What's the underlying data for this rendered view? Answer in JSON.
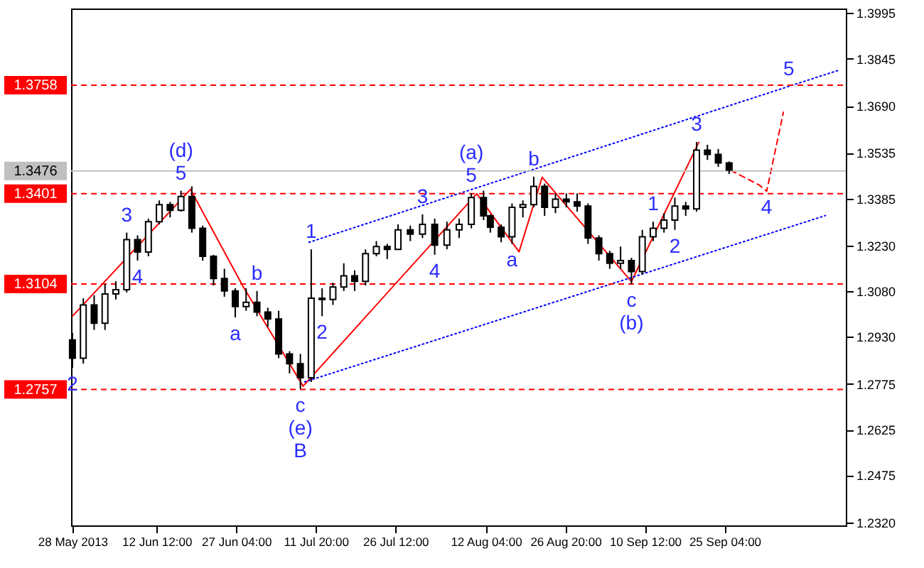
{
  "chart_data": {
    "type": "candlestick",
    "xlim": [
      "2013-05-27T18:00",
      "2013-10-17T12:00"
    ],
    "ylim": [
      1.231,
      1.401
    ],
    "xticks": [
      {
        "value": "2013-05-28",
        "label": "28 May 2013"
      },
      {
        "value": "2013-06-12T12:00",
        "label": "12 Jun 12:00"
      },
      {
        "value": "2013-06-27T04:00",
        "label": "27 Jun 04:00"
      },
      {
        "value": "2013-07-11T20:00",
        "label": "11 Jul 20:00"
      },
      {
        "value": "2013-07-26T12:00",
        "label": "26 Jul 12:00"
      },
      {
        "value": "2013-08-12T04:00",
        "label": "12 Aug 04:00"
      },
      {
        "value": "2013-08-26T20:00",
        "label": "26 Aug 20:00"
      },
      {
        "value": "2013-09-10T12:00",
        "label": "10 Sep 12:00"
      },
      {
        "value": "2013-09-25T04:00",
        "label": "25 Sep 04:00"
      }
    ],
    "yticks": [
      {
        "value": 1.232,
        "label": "1.2320"
      },
      {
        "value": 1.2475,
        "label": "1.2475"
      },
      {
        "value": 1.2625,
        "label": "1.2625"
      },
      {
        "value": 1.2775,
        "label": "1.2775"
      },
      {
        "value": 1.293,
        "label": "1.2930"
      },
      {
        "value": 1.308,
        "label": "1.3080"
      },
      {
        "value": 1.323,
        "label": "1.3230"
      },
      {
        "value": 1.3385,
        "label": "1.3385"
      },
      {
        "value": 1.3535,
        "label": "1.3535"
      },
      {
        "value": 1.369,
        "label": "1.3690"
      },
      {
        "value": 1.3845,
        "label": "1.3845"
      },
      {
        "value": 1.3995,
        "label": "1.3995"
      }
    ],
    "series": [
      {
        "type": "line",
        "color": "#ff0000",
        "line_style": "solid",
        "x": [
          "2013-05-28",
          "2013-06-18T18:00",
          "2013-06-28T12:00",
          "2013-07-09T12:00",
          "2013-08-10T12:00",
          "2013-08-14T05:00",
          "2013-08-18T07:00",
          "2013-08-22T13:00",
          "2013-09-08",
          "2013-09-20T10:00"
        ],
        "values": [
          1.2998,
          1.3415,
          1.3094,
          1.2768,
          1.3401,
          1.3309,
          1.321,
          1.3455,
          1.3112,
          1.357
        ]
      },
      {
        "type": "line",
        "color": "#ff0000",
        "line_style": "dashed",
        "x": [
          "2013-09-26T07:00",
          "2013-10-01T14:00",
          "2013-10-02T22:00",
          "2013-10-06"
        ],
        "values": [
          1.3478,
          1.3429,
          1.3409,
          1.3669
        ]
      },
      {
        "type": "line",
        "color": "#0000ff",
        "line_style": "dotted",
        "x": [
          "2013-07-10T14:00",
          "2013-10-07",
          "2013-10-16"
        ],
        "values": [
          1.3241,
          1.3754,
          1.3806
        ]
      },
      {
        "type": "line",
        "color": "#0000ff",
        "line_style": "dotted",
        "x": [
          "2013-07-09T19:00",
          "2013-10-13T18:00"
        ],
        "values": [
          1.2782,
          1.3329
        ]
      },
      {
        "color": "#000000",
        "x": [
          "2013-05-28",
          "2013-05-30",
          "2013-06-01",
          "2013-06-03",
          "2013-06-05",
          "2013-06-07",
          "2013-06-09",
          "2013-06-11",
          "2013-06-13",
          "2013-06-15",
          "2013-06-17",
          "2013-06-19",
          "2013-06-21",
          "2013-06-23",
          "2013-06-25",
          "2013-06-27",
          "2013-06-29",
          "2013-07-01",
          "2013-07-03",
          "2013-07-05",
          "2013-07-07",
          "2013-07-09",
          "2013-07-11",
          "2013-07-13",
          "2013-07-15",
          "2013-07-17",
          "2013-07-19",
          "2013-07-21",
          "2013-07-23",
          "2013-07-25",
          "2013-07-27",
          "2013-07-29T06:00",
          "2013-07-31T12:00",
          "2013-08-02T18:00",
          "2013-08-05",
          "2013-08-07T06:00",
          "2013-08-09T12:00",
          "2013-08-11T18:00",
          "2013-08-13",
          "2013-08-15",
          "2013-08-17",
          "2013-08-19",
          "2013-08-21",
          "2013-08-23",
          "2013-08-25",
          "2013-08-27",
          "2013-08-29",
          "2013-08-31",
          "2013-09-02",
          "2013-09-04",
          "2013-09-06",
          "2013-09-08",
          "2013-09-10",
          "2013-09-12",
          "2013-09-14",
          "2013-09-16",
          "2013-09-18",
          "2013-09-20",
          "2013-09-22",
          "2013-09-24",
          "2013-09-26"
        ],
        "ohlc": [
          [
            1.292,
            1.2943,
            1.2828,
            1.286
          ],
          [
            1.286,
            1.3057,
            1.2842,
            1.3035
          ],
          [
            1.3035,
            1.3067,
            1.2953,
            1.2975
          ],
          [
            1.2975,
            1.3104,
            1.2953,
            1.3071
          ],
          [
            1.3071,
            1.3113,
            1.3053,
            1.3085
          ],
          [
            1.3085,
            1.3273,
            1.3076,
            1.325
          ],
          [
            1.325,
            1.3264,
            1.3181,
            1.3209
          ],
          [
            1.3209,
            1.3319,
            1.3195,
            1.3309
          ],
          [
            1.3309,
            1.3379,
            1.33,
            1.3365
          ],
          [
            1.3365,
            1.3374,
            1.3323,
            1.3346
          ],
          [
            1.3346,
            1.3411,
            1.3342,
            1.3392
          ],
          [
            1.3392,
            1.3425,
            1.3273,
            1.3287
          ],
          [
            1.3287,
            1.3296,
            1.3181,
            1.3195
          ],
          [
            1.3195,
            1.32,
            1.3099,
            1.3122
          ],
          [
            1.3122,
            1.3154,
            1.3062,
            1.3081
          ],
          [
            1.3081,
            1.309,
            1.2994,
            1.303
          ],
          [
            1.303,
            1.309,
            1.3016,
            1.3044
          ],
          [
            1.3044,
            1.3081,
            1.2998,
            1.3012
          ],
          [
            1.3012,
            1.3026,
            1.2962,
            1.2989
          ],
          [
            1.2989,
            1.3016,
            1.286,
            1.2874
          ],
          [
            1.2874,
            1.2883,
            1.281,
            1.2842
          ],
          [
            1.2842,
            1.2874,
            1.2759,
            1.2796
          ],
          [
            1.2796,
            1.3218,
            1.2782,
            1.3057
          ],
          [
            1.3057,
            1.309,
            1.2998,
            1.3053
          ],
          [
            1.3053,
            1.3108,
            1.3035,
            1.3094
          ],
          [
            1.3094,
            1.3172,
            1.3081,
            1.3131
          ],
          [
            1.3131,
            1.3149,
            1.3081,
            1.3113
          ],
          [
            1.3113,
            1.3218,
            1.3099,
            1.3204
          ],
          [
            1.3204,
            1.3245,
            1.3195,
            1.3227
          ],
          [
            1.3227,
            1.3236,
            1.3186,
            1.3218
          ],
          [
            1.3218,
            1.33,
            1.3218,
            1.3282
          ],
          [
            1.3282,
            1.3296,
            1.3245,
            1.3268
          ],
          [
            1.3268,
            1.3333,
            1.3255,
            1.33
          ],
          [
            1.33,
            1.3319,
            1.32,
            1.3232
          ],
          [
            1.3232,
            1.3309,
            1.3218,
            1.3282
          ],
          [
            1.3282,
            1.3319,
            1.3255,
            1.33
          ],
          [
            1.33,
            1.3402,
            1.3287,
            1.3388
          ],
          [
            1.3388,
            1.3411,
            1.3314,
            1.3328
          ],
          [
            1.3328,
            1.3333,
            1.3273,
            1.3291
          ],
          [
            1.3291,
            1.33,
            1.3241,
            1.3259
          ],
          [
            1.3259,
            1.3369,
            1.3236,
            1.3356
          ],
          [
            1.3356,
            1.3379,
            1.3323,
            1.3365
          ],
          [
            1.3365,
            1.3457,
            1.3356,
            1.3425
          ],
          [
            1.3425,
            1.3434,
            1.3328,
            1.3356
          ],
          [
            1.3356,
            1.3402,
            1.3337,
            1.3383
          ],
          [
            1.3383,
            1.3402,
            1.3356,
            1.3374
          ],
          [
            1.3374,
            1.3402,
            1.3342,
            1.336
          ],
          [
            1.336,
            1.3369,
            1.3236,
            1.3255
          ],
          [
            1.3255,
            1.3264,
            1.3181,
            1.3204
          ],
          [
            1.3204,
            1.3213,
            1.3154,
            1.3172
          ],
          [
            1.3172,
            1.3227,
            1.3154,
            1.3181
          ],
          [
            1.3181,
            1.319,
            1.3104,
            1.3145
          ],
          [
            1.3145,
            1.3282,
            1.3136,
            1.3259
          ],
          [
            1.3259,
            1.3309,
            1.3245,
            1.3287
          ],
          [
            1.3287,
            1.3337,
            1.3273,
            1.3314
          ],
          [
            1.3314,
            1.3388,
            1.3282,
            1.336
          ],
          [
            1.336,
            1.3374,
            1.3328,
            1.3351
          ],
          [
            1.3351,
            1.3571,
            1.3342,
            1.3544
          ],
          [
            1.3544,
            1.3562,
            1.3512,
            1.353
          ],
          [
            1.353,
            1.3548,
            1.3489,
            1.3502
          ],
          [
            1.3502,
            1.3507,
            1.3466,
            1.3479
          ]
        ]
      }
    ],
    "ref_lines": [
      {
        "axis": "y",
        "value": 1.3758,
        "label": "1.3758",
        "color": "#ff0000",
        "line_style": "dashed"
      },
      {
        "axis": "y",
        "value": 1.3476,
        "label": "1.3476",
        "color": "#c0c0c0",
        "line_style": "solid"
      },
      {
        "axis": "y",
        "value": 1.3401,
        "label": "1.3401",
        "color": "#ff0000",
        "line_style": "dashed"
      },
      {
        "axis": "y",
        "value": 1.3104,
        "label": "1.3104",
        "color": "#ff0000",
        "line_style": "dashed"
      },
      {
        "axis": "y",
        "value": 1.2757,
        "label": "1.2757",
        "color": "#ff0000",
        "line_style": "dashed"
      }
    ],
    "annotations": [
      {
        "text": "2",
        "x": "2013-05-28",
        "y": 1.2828
      },
      {
        "text": "3",
        "x": "2013-06-07",
        "y": 1.3273
      },
      {
        "text": "4",
        "x": "2013-06-09",
        "y": 1.3181
      },
      {
        "text": "5",
        "x": "2013-06-17",
        "y": 1.3411
      },
      {
        "text": "(d)",
        "x": "2013-06-17",
        "y": 1.3411
      },
      {
        "text": "a",
        "x": "2013-06-27",
        "y": 1.2994
      },
      {
        "text": "b",
        "x": "2013-07-01",
        "y": 1.3081
      },
      {
        "text": "c",
        "x": "2013-07-09",
        "y": 1.2759
      },
      {
        "text": "(e)",
        "x": "2013-07-09",
        "y": 1.2759
      },
      {
        "text": "B",
        "x": "2013-07-09",
        "y": 1.2759
      },
      {
        "text": "1",
        "x": "2013-07-11",
        "y": 1.3218
      },
      {
        "text": "2",
        "x": "2013-07-13",
        "y": 1.2998
      },
      {
        "text": "3",
        "x": "2013-07-31T12:00",
        "y": 1.3333
      },
      {
        "text": "4",
        "x": "2013-08-02T18:00",
        "y": 1.32
      },
      {
        "text": "5",
        "x": "2013-08-09T12:00",
        "y": 1.3402
      },
      {
        "text": "(a)",
        "x": "2013-08-09T12:00",
        "y": 1.3402
      },
      {
        "text": "a",
        "x": "2013-08-17",
        "y": 1.3236
      },
      {
        "text": "b",
        "x": "2013-08-21",
        "y": 1.3457
      },
      {
        "text": "c",
        "x": "2013-09-08",
        "y": 1.3104
      },
      {
        "text": "(b)",
        "x": "2013-09-08",
        "y": 1.3104
      },
      {
        "text": "1",
        "x": "2013-09-12",
        "y": 1.3309
      },
      {
        "text": "2",
        "x": "2013-09-16",
        "y": 1.3282
      },
      {
        "text": "3",
        "x": "2013-09-20",
        "y": 1.3571
      },
      {
        "text": "4",
        "x": "2013-10-02T22:00",
        "y": 1.3409
      },
      {
        "text": "5",
        "x": "2013-10-07",
        "y": 1.3754
      }
    ]
  }
}
